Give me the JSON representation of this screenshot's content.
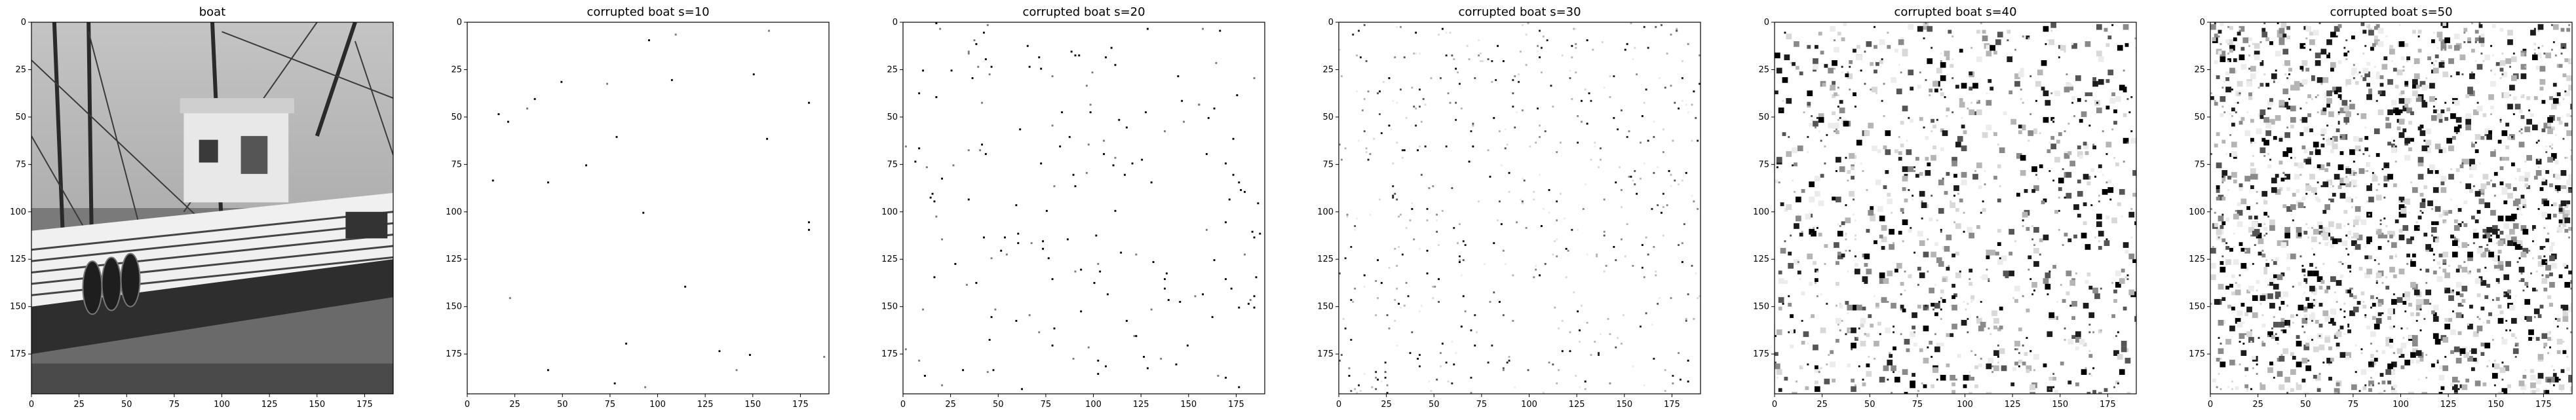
{
  "chart_data": [
    {
      "type": "image",
      "title": "boat",
      "image_ref": "boat",
      "noise_level": 0,
      "x_ticks": [
        "0",
        "25",
        "50",
        "75",
        "100",
        "125",
        "150",
        "175"
      ],
      "y_ticks": [
        "0",
        "25",
        "50",
        "75",
        "100",
        "125",
        "150",
        "175"
      ],
      "xlim": [
        0,
        190
      ],
      "ylim": [
        196,
        0
      ],
      "colormap": "gray",
      "grid": false
    },
    {
      "type": "image",
      "title": "corrupted boat s=10",
      "image_ref": "boat",
      "noise_level": 10,
      "x_ticks": [
        "0",
        "25",
        "50",
        "75",
        "100",
        "125",
        "150",
        "175"
      ],
      "y_ticks": [
        "0",
        "25",
        "50",
        "75",
        "100",
        "125",
        "150",
        "175"
      ],
      "xlim": [
        0,
        190
      ],
      "ylim": [
        196,
        0
      ],
      "colormap": "gray",
      "grid": false
    },
    {
      "type": "image",
      "title": "corrupted boat s=20",
      "image_ref": "boat",
      "noise_level": 20,
      "x_ticks": [
        "0",
        "25",
        "50",
        "75",
        "100",
        "125",
        "150",
        "175"
      ],
      "y_ticks": [
        "0",
        "25",
        "50",
        "75",
        "100",
        "125",
        "150",
        "175"
      ],
      "xlim": [
        0,
        190
      ],
      "ylim": [
        196,
        0
      ],
      "colormap": "gray",
      "grid": false
    },
    {
      "type": "image",
      "title": "corrupted boat s=30",
      "image_ref": "boat",
      "noise_level": 30,
      "x_ticks": [
        "0",
        "25",
        "50",
        "75",
        "100",
        "125",
        "150",
        "175"
      ],
      "y_ticks": [
        "0",
        "25",
        "50",
        "75",
        "100",
        "125",
        "150",
        "175"
      ],
      "xlim": [
        0,
        190
      ],
      "ylim": [
        196,
        0
      ],
      "colormap": "gray",
      "grid": false
    },
    {
      "type": "image",
      "title": "corrupted boat s=40",
      "image_ref": "boat",
      "noise_level": 40,
      "x_ticks": [
        "0",
        "25",
        "50",
        "75",
        "100",
        "125",
        "150",
        "175"
      ],
      "y_ticks": [
        "0",
        "25",
        "50",
        "75",
        "100",
        "125",
        "150",
        "175"
      ],
      "xlim": [
        0,
        190
      ],
      "ylim": [
        196,
        0
      ],
      "colormap": "gray",
      "grid": false
    },
    {
      "type": "image",
      "title": "corrupted boat s=50",
      "image_ref": "boat",
      "noise_level": 50,
      "x_ticks": [
        "0",
        "25",
        "50",
        "75",
        "100",
        "125",
        "150",
        "175"
      ],
      "y_ticks": [
        "0",
        "25",
        "50",
        "75",
        "100",
        "125",
        "150",
        "175"
      ],
      "xlim": [
        0,
        190
      ],
      "ylim": [
        196,
        0
      ],
      "colormap": "gray",
      "grid": false
    }
  ]
}
